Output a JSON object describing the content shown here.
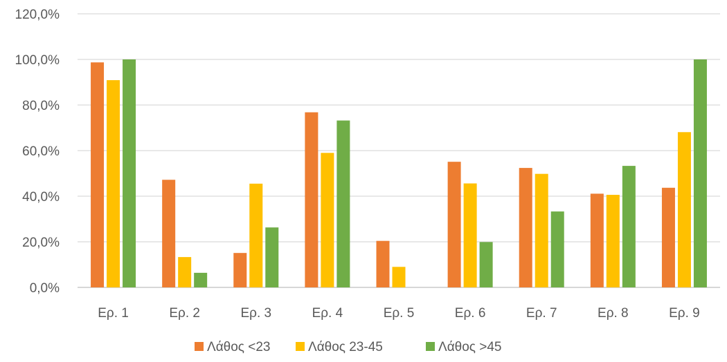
{
  "chart_data": {
    "type": "bar",
    "categories": [
      "Ερ. 1",
      "Ερ. 2",
      "Ερ. 3",
      "Ερ. 4",
      "Ερ. 5",
      "Ερ. 6",
      "Ερ. 7",
      "Ερ. 8",
      "Ερ. 9"
    ],
    "series": [
      {
        "name": "Λάθος <23",
        "color": "#ED7D31",
        "values": [
          98.7,
          47.2,
          15.1,
          76.8,
          20.4,
          55.1,
          52.4,
          41.1,
          43.7
        ]
      },
      {
        "name": "Λάθος 23-45",
        "color": "#FFC000",
        "values": [
          90.9,
          13.3,
          45.5,
          59.0,
          9.0,
          45.6,
          49.8,
          40.6,
          68.1
        ]
      },
      {
        "name": "Λάθος >45",
        "color": "#70AD47",
        "values": [
          100.0,
          6.4,
          26.3,
          73.2,
          0.0,
          19.9,
          33.3,
          53.3,
          100.0
        ]
      }
    ],
    "ylim": [
      0,
      120
    ],
    "yticks": [
      "0,0%",
      "20,0%",
      "40,0%",
      "60,0%",
      "80,0%",
      "100,0%",
      "120,0%"
    ],
    "ytick_values": [
      0,
      20,
      40,
      60,
      80,
      100,
      120
    ],
    "gridlines": true,
    "legend_position": "bottom",
    "title": "",
    "xlabel": "",
    "ylabel": ""
  }
}
